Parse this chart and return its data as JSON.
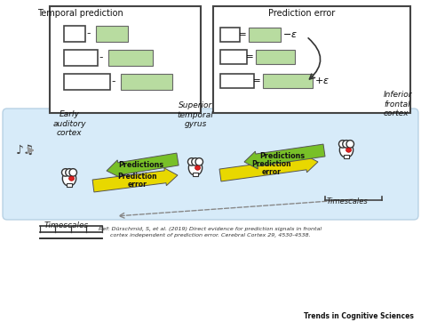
{
  "bg_color": "#ffffff",
  "light_green": "#b8dca0",
  "green_arrow": "#78c028",
  "yellow_arrow": "#e8d800",
  "blue_bg": "#d0e8f8",
  "box_ec": "#333333",
  "ref_text": "Ref: Dürschmid, S, et al. (2019) Direct evidence for prediction signals in frontal\ncortex independent of prediction error. Cerebral Cortex 29, 4530-4538.",
  "journal_text": "Trends in Cognitive Sciences",
  "tp_title": "Temporal prediction",
  "pe_title": "Prediction error",
  "label_early": "Early\nauditory\ncortex",
  "label_stg": "Superior\ntemporal\ngyrus",
  "label_ifc": "Inferior\nfrontal\ncortex",
  "label_timescales_bot": "Timescales",
  "label_timescales_right": "Timescales"
}
